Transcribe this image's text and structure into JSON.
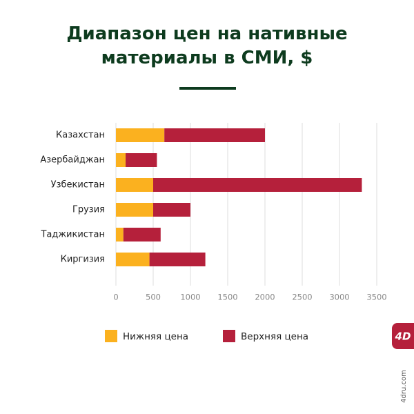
{
  "chart_data": {
    "type": "range-bar",
    "title": "Диапазон цен на нативные материалы в СМИ, $",
    "categories": [
      "Казахстан",
      "Азербайджан",
      "Узбекистан",
      "Грузия",
      "Таджикистан",
      "Киргизия"
    ],
    "series": [
      {
        "name": "Нижняя цена",
        "color": "#fbb11f",
        "values": [
          650,
          130,
          500,
          500,
          100,
          450
        ]
      },
      {
        "name": "Верхняя цена",
        "color": "#b5203b",
        "values": [
          2000,
          550,
          3300,
          1000,
          600,
          1200
        ]
      }
    ],
    "xlim": [
      0,
      3500
    ],
    "xticks": [
      0,
      500,
      1000,
      1500,
      2000,
      2500,
      3000,
      3500
    ],
    "grid": true,
    "logo": "4D",
    "watermark": "4dru.com"
  }
}
